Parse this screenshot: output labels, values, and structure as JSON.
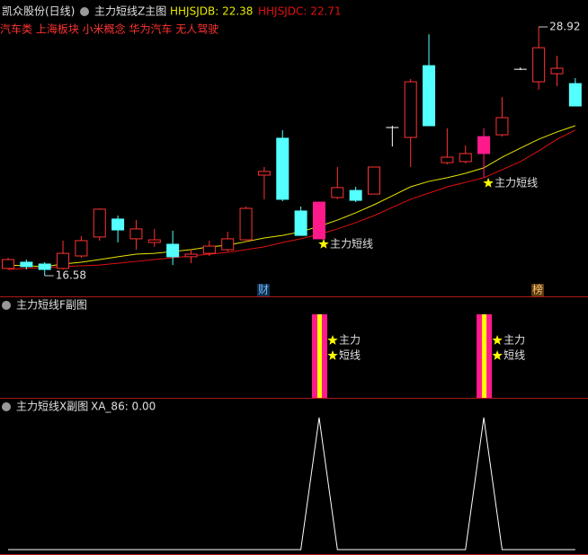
{
  "chart_data": {
    "type": "candlestick",
    "header": {
      "stock": "凯众股份(日线)",
      "indicator": "主力短线Z主图",
      "items": [
        "HHJSJDB: 22.38",
        "HHJSJDC: 22.71"
      ],
      "tags": "汽车类 上海板块 小米概念 华为汽车 无人驾驶"
    },
    "colors": {
      "up": "#ff3232",
      "down": "#54ffff",
      "flat": "#ffffff",
      "signal": "#ff1a8c",
      "star": "#ffff00"
    },
    "ohlc": [
      [
        16.94,
        17.47,
        16.89,
        17.38
      ],
      [
        17.25,
        17.38,
        16.89,
        17.03
      ],
      [
        17.16,
        17.25,
        16.58,
        16.89
      ],
      [
        16.94,
        18.32,
        16.89,
        17.69
      ],
      [
        17.56,
        18.54,
        17.47,
        18.32
      ],
      [
        18.5,
        19.92,
        18.32,
        19.88
      ],
      [
        19.39,
        19.56,
        18.23,
        18.85
      ],
      [
        18.41,
        19.34,
        17.87,
        18.9
      ],
      [
        18.23,
        18.9,
        18.01,
        18.36
      ],
      [
        18.14,
        18.81,
        17.11,
        17.52
      ],
      [
        17.52,
        17.87,
        17.2,
        17.65
      ],
      [
        17.69,
        18.32,
        17.56,
        18.05
      ],
      [
        17.87,
        18.76,
        17.78,
        18.41
      ],
      [
        18.36,
        20.01,
        18.32,
        19.92
      ],
      [
        21.57,
        21.97,
        20.37,
        21.75
      ],
      [
        23.4,
        23.8,
        20.28,
        20.37
      ],
      [
        19.79,
        20.01,
        18.58,
        18.58
      ],
      [
        18.41,
        20.23,
        18.41,
        20.23
      ],
      [
        20.46,
        21.97,
        20.37,
        20.95
      ],
      [
        20.81,
        20.99,
        20.23,
        20.32
      ],
      [
        20.63,
        21.97,
        20.63,
        21.97
      ],
      [
        23.93,
        24.02,
        22.99,
        23.93
      ],
      [
        23.44,
        26.34,
        21.97,
        26.2
      ],
      [
        27.0,
        28.56,
        24.02,
        24.02
      ],
      [
        22.19,
        23.89,
        22.1,
        22.46
      ],
      [
        22.24,
        23.04,
        22.15,
        22.64
      ],
      [
        22.64,
        23.89,
        21.44,
        23.48
      ],
      [
        23.57,
        25.44,
        23.48,
        24.42
      ],
      [
        26.82,
        26.91,
        26.78,
        26.82
      ],
      [
        26.2,
        28.92,
        25.8,
        27.89
      ],
      [
        26.6,
        27.49,
        25.98,
        26.87
      ],
      [
        26.11,
        26.38,
        25.0,
        25.0
      ]
    ],
    "series": [
      {
        "color": "#e8e800",
        "values": [
          17.11,
          17.07,
          17.03,
          17.16,
          17.25,
          17.38,
          17.52,
          17.65,
          17.69,
          17.78,
          17.87,
          18.01,
          18.09,
          18.27,
          18.45,
          18.58,
          18.76,
          19.03,
          19.34,
          19.7,
          20.1,
          20.54,
          20.99,
          21.26,
          21.44,
          21.66,
          21.93,
          22.46,
          22.91,
          23.35,
          23.71,
          24.02
        ]
      },
      {
        "color": "#e01010",
        "values": [
          16.89,
          16.94,
          16.98,
          17.03,
          17.07,
          17.11,
          17.2,
          17.29,
          17.38,
          17.47,
          17.56,
          17.65,
          17.74,
          17.87,
          18.01,
          18.23,
          18.41,
          18.63,
          18.9,
          19.21,
          19.56,
          19.97,
          20.37,
          20.68,
          20.99,
          21.21,
          21.44,
          21.84,
          22.24,
          22.77,
          23.35,
          23.8
        ]
      }
    ],
    "signal_label": "主力短线",
    "markers": [
      "财",
      "榜"
    ],
    "sub1": {
      "title": "主力短线F副图",
      "labels": [
        "主力",
        "短线"
      ]
    },
    "sub2": {
      "title": "主力短线X副图",
      "name": "XA_86: 0.00",
      "color": "#ffffff",
      "ylim": [
        0,
        1
      ],
      "values": [
        0,
        0,
        0,
        0,
        0,
        0,
        0,
        0,
        0,
        0,
        0,
        0,
        0,
        0,
        0,
        0,
        0,
        1,
        0,
        0,
        0,
        0,
        0,
        0,
        0,
        0,
        1,
        0,
        0,
        0,
        0,
        0
      ]
    }
  }
}
